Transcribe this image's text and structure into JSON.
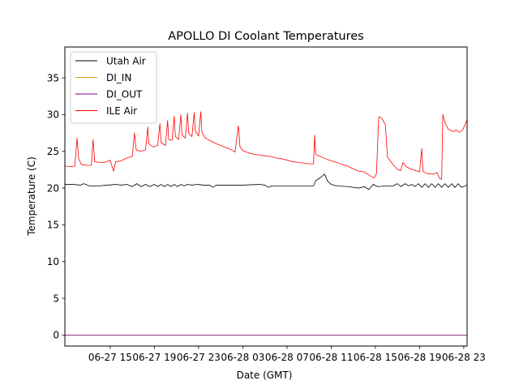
{
  "chart_data": {
    "type": "line",
    "title": "APOLLO DI Coolant Temperatures",
    "xlabel": "Date (GMT)",
    "ylabel": "Temperature (C)",
    "xlim": [
      10.9,
      47.3
    ],
    "ylim": [
      -1.5,
      39.2
    ],
    "x_unit": "hours since 06-27 00:00 GMT",
    "yticks": [
      0,
      5,
      10,
      15,
      20,
      25,
      30,
      35
    ],
    "xticks": [
      {
        "value": 15,
        "label": "06-27 15"
      },
      {
        "value": 19,
        "label": "06-27 19"
      },
      {
        "value": 23,
        "label": "06-27 23"
      },
      {
        "value": 27,
        "label": "06-28 03"
      },
      {
        "value": 31,
        "label": "06-28 07"
      },
      {
        "value": 35,
        "label": "06-28 11"
      },
      {
        "value": 39,
        "label": "06-28 15"
      },
      {
        "value": 43,
        "label": "06-28 19"
      },
      {
        "value": 47,
        "label": "06-28 23"
      }
    ],
    "legend_position": "top-left",
    "series": [
      {
        "name": "Utah Air",
        "color": "#000000",
        "points": [
          [
            10.9,
            20.5
          ],
          [
            11.6,
            20.5
          ],
          [
            12.3,
            20.4
          ],
          [
            12.6,
            20.6
          ],
          [
            13.1,
            20.3
          ],
          [
            14.0,
            20.3
          ],
          [
            14.8,
            20.4
          ],
          [
            15.5,
            20.5
          ],
          [
            16.0,
            20.4
          ],
          [
            16.5,
            20.5
          ],
          [
            17.0,
            20.2
          ],
          [
            17.4,
            20.6
          ],
          [
            17.8,
            20.2
          ],
          [
            18.2,
            20.5
          ],
          [
            18.6,
            20.2
          ],
          [
            19.0,
            20.5
          ],
          [
            19.3,
            20.2
          ],
          [
            19.6,
            20.5
          ],
          [
            19.9,
            20.2
          ],
          [
            20.2,
            20.5
          ],
          [
            20.5,
            20.2
          ],
          [
            20.8,
            20.5
          ],
          [
            21.1,
            20.2
          ],
          [
            21.4,
            20.5
          ],
          [
            21.7,
            20.3
          ],
          [
            22.0,
            20.5
          ],
          [
            22.4,
            20.4
          ],
          [
            22.9,
            20.5
          ],
          [
            23.5,
            20.4
          ],
          [
            24.0,
            20.4
          ],
          [
            24.3,
            20.1
          ],
          [
            24.6,
            20.4
          ],
          [
            25.5,
            20.4
          ],
          [
            27.0,
            20.4
          ],
          [
            28.5,
            20.5
          ],
          [
            29.0,
            20.4
          ],
          [
            29.3,
            20.1
          ],
          [
            29.6,
            20.3
          ],
          [
            31.0,
            20.3
          ],
          [
            32.5,
            20.3
          ],
          [
            33.4,
            20.3
          ],
          [
            33.6,
            21.0
          ],
          [
            34.0,
            21.4
          ],
          [
            34.4,
            21.9
          ],
          [
            34.7,
            20.9
          ],
          [
            35.0,
            20.5
          ],
          [
            35.5,
            20.3
          ],
          [
            36.5,
            20.2
          ],
          [
            37.5,
            20.0
          ],
          [
            38.0,
            20.2
          ],
          [
            38.4,
            19.8
          ],
          [
            38.8,
            20.5
          ],
          [
            39.2,
            20.2
          ],
          [
            40.0,
            20.3
          ],
          [
            40.6,
            20.3
          ],
          [
            41.0,
            20.6
          ],
          [
            41.3,
            20.2
          ],
          [
            41.7,
            20.6
          ],
          [
            42.0,
            20.3
          ],
          [
            42.3,
            20.5
          ],
          [
            42.6,
            20.2
          ],
          [
            42.9,
            20.6
          ],
          [
            43.2,
            20.1
          ],
          [
            43.5,
            20.6
          ],
          [
            43.8,
            20.1
          ],
          [
            44.1,
            20.6
          ],
          [
            44.4,
            20.1
          ],
          [
            44.7,
            20.6
          ],
          [
            45.0,
            20.1
          ],
          [
            45.3,
            20.6
          ],
          [
            45.6,
            20.1
          ],
          [
            45.9,
            20.6
          ],
          [
            46.2,
            20.1
          ],
          [
            46.5,
            20.6
          ],
          [
            46.8,
            20.1
          ],
          [
            47.3,
            20.4
          ]
        ]
      },
      {
        "name": "DI_IN",
        "color": "#DAA520",
        "points": [
          [
            10.9,
            0
          ],
          [
            47.3,
            0
          ]
        ]
      },
      {
        "name": "DI_OUT",
        "color": "#800080",
        "points": [
          [
            10.9,
            0
          ],
          [
            47.3,
            0
          ]
        ]
      },
      {
        "name": "ILE Air",
        "color": "#FF0000",
        "points": [
          [
            10.9,
            23.0
          ],
          [
            11.5,
            22.9
          ],
          [
            11.8,
            23.0
          ],
          [
            12.0,
            26.8
          ],
          [
            12.15,
            24.0
          ],
          [
            12.4,
            23.2
          ],
          [
            12.9,
            23.1
          ],
          [
            13.3,
            23.1
          ],
          [
            13.45,
            26.6
          ],
          [
            13.6,
            23.6
          ],
          [
            14.0,
            23.5
          ],
          [
            14.5,
            23.5
          ],
          [
            15.0,
            23.8
          ],
          [
            15.3,
            22.3
          ],
          [
            15.5,
            23.6
          ],
          [
            16.0,
            23.7
          ],
          [
            16.5,
            24.1
          ],
          [
            17.0,
            24.3
          ],
          [
            17.2,
            27.5
          ],
          [
            17.35,
            25.2
          ],
          [
            17.8,
            25.0
          ],
          [
            18.2,
            25.2
          ],
          [
            18.4,
            28.3
          ],
          [
            18.5,
            26.0
          ],
          [
            18.9,
            25.6
          ],
          [
            19.3,
            25.8
          ],
          [
            19.5,
            28.8
          ],
          [
            19.6,
            26.2
          ],
          [
            20.0,
            25.8
          ],
          [
            20.2,
            29.2
          ],
          [
            20.3,
            26.6
          ],
          [
            20.6,
            26.5
          ],
          [
            20.8,
            29.8
          ],
          [
            20.9,
            27.0
          ],
          [
            21.2,
            26.6
          ],
          [
            21.4,
            30.0
          ],
          [
            21.5,
            27.2
          ],
          [
            21.8,
            26.8
          ],
          [
            22.0,
            30.2
          ],
          [
            22.1,
            27.5
          ],
          [
            22.4,
            27.0
          ],
          [
            22.6,
            30.3
          ],
          [
            22.7,
            27.8
          ],
          [
            23.0,
            27.1
          ],
          [
            23.2,
            30.4
          ],
          [
            23.3,
            27.6
          ],
          [
            23.6,
            26.8
          ],
          [
            24.0,
            26.5
          ],
          [
            24.5,
            26.1
          ],
          [
            25.0,
            25.8
          ],
          [
            25.5,
            25.5
          ],
          [
            26.0,
            25.2
          ],
          [
            26.3,
            24.9
          ],
          [
            26.6,
            28.5
          ],
          [
            26.75,
            25.6
          ],
          [
            27.0,
            25.1
          ],
          [
            27.5,
            24.8
          ],
          [
            28.0,
            24.6
          ],
          [
            28.5,
            24.5
          ],
          [
            29.0,
            24.4
          ],
          [
            29.5,
            24.3
          ],
          [
            30.0,
            24.1
          ],
          [
            30.5,
            24.0
          ],
          [
            31.0,
            23.8
          ],
          [
            31.5,
            23.6
          ],
          [
            32.0,
            23.5
          ],
          [
            32.5,
            23.4
          ],
          [
            33.0,
            23.3
          ],
          [
            33.4,
            23.3
          ],
          [
            33.5,
            27.2
          ],
          [
            33.6,
            24.6
          ],
          [
            34.0,
            24.3
          ],
          [
            34.5,
            24.0
          ],
          [
            35.0,
            23.7
          ],
          [
            35.5,
            23.5
          ],
          [
            36.0,
            23.2
          ],
          [
            36.5,
            23.0
          ],
          [
            37.0,
            22.6
          ],
          [
            37.5,
            22.3
          ],
          [
            38.0,
            22.2
          ],
          [
            38.6,
            21.6
          ],
          [
            38.9,
            21.4
          ],
          [
            39.1,
            22.0
          ],
          [
            39.3,
            29.7
          ],
          [
            39.5,
            29.6
          ],
          [
            39.7,
            29.2
          ],
          [
            39.9,
            28.6
          ],
          [
            40.1,
            24.2
          ],
          [
            40.5,
            23.4
          ],
          [
            41.0,
            22.5
          ],
          [
            41.3,
            22.4
          ],
          [
            41.5,
            23.5
          ],
          [
            41.8,
            22.9
          ],
          [
            42.2,
            22.6
          ],
          [
            42.6,
            22.4
          ],
          [
            43.0,
            22.2
          ],
          [
            43.2,
            25.4
          ],
          [
            43.3,
            22.3
          ],
          [
            43.6,
            22.0
          ],
          [
            44.2,
            21.9
          ],
          [
            44.6,
            22.1
          ],
          [
            44.8,
            21.3
          ],
          [
            45.0,
            21.2
          ],
          [
            45.1,
            30.0
          ],
          [
            45.3,
            28.9
          ],
          [
            45.6,
            28.0
          ],
          [
            45.9,
            27.8
          ],
          [
            46.1,
            27.7
          ],
          [
            46.3,
            27.9
          ],
          [
            46.6,
            27.6
          ],
          [
            46.9,
            27.9
          ],
          [
            47.3,
            29.3
          ]
        ]
      }
    ]
  }
}
